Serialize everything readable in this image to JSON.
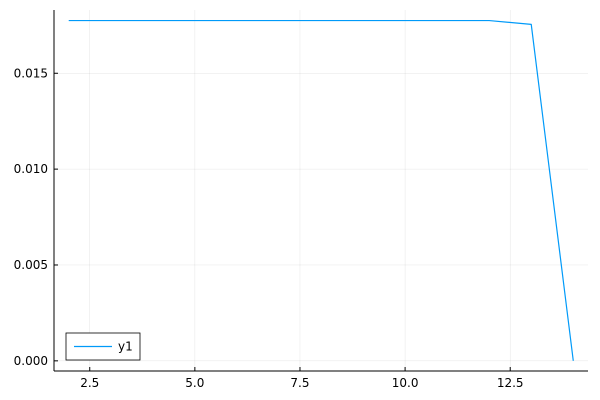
{
  "chart_data": {
    "type": "line",
    "title": "",
    "xlabel": "",
    "ylabel": "",
    "xlim": [
      1.65,
      14.35
    ],
    "ylim": [
      -0.00053,
      0.0183
    ],
    "x_ticks": [
      2.5,
      5.0,
      7.5,
      10.0,
      12.5
    ],
    "x_tick_labels": [
      "2.5",
      "5.0",
      "7.5",
      "10.0",
      "12.5"
    ],
    "y_ticks": [
      0.0,
      0.005,
      0.01,
      0.015
    ],
    "y_tick_labels": [
      "0.000",
      "0.005",
      "0.010",
      "0.015"
    ],
    "grid": true,
    "legend": "bottom-left",
    "series": [
      {
        "name": "y1",
        "color": "#009af9",
        "x": [
          2,
          3,
          4,
          5,
          6,
          7,
          8,
          9,
          10,
          11,
          12,
          13,
          14
        ],
        "y": [
          0.01775,
          0.01775,
          0.01775,
          0.01775,
          0.01775,
          0.01775,
          0.01775,
          0.01775,
          0.01775,
          0.01775,
          0.01775,
          0.01755,
          0.0
        ]
      }
    ]
  }
}
